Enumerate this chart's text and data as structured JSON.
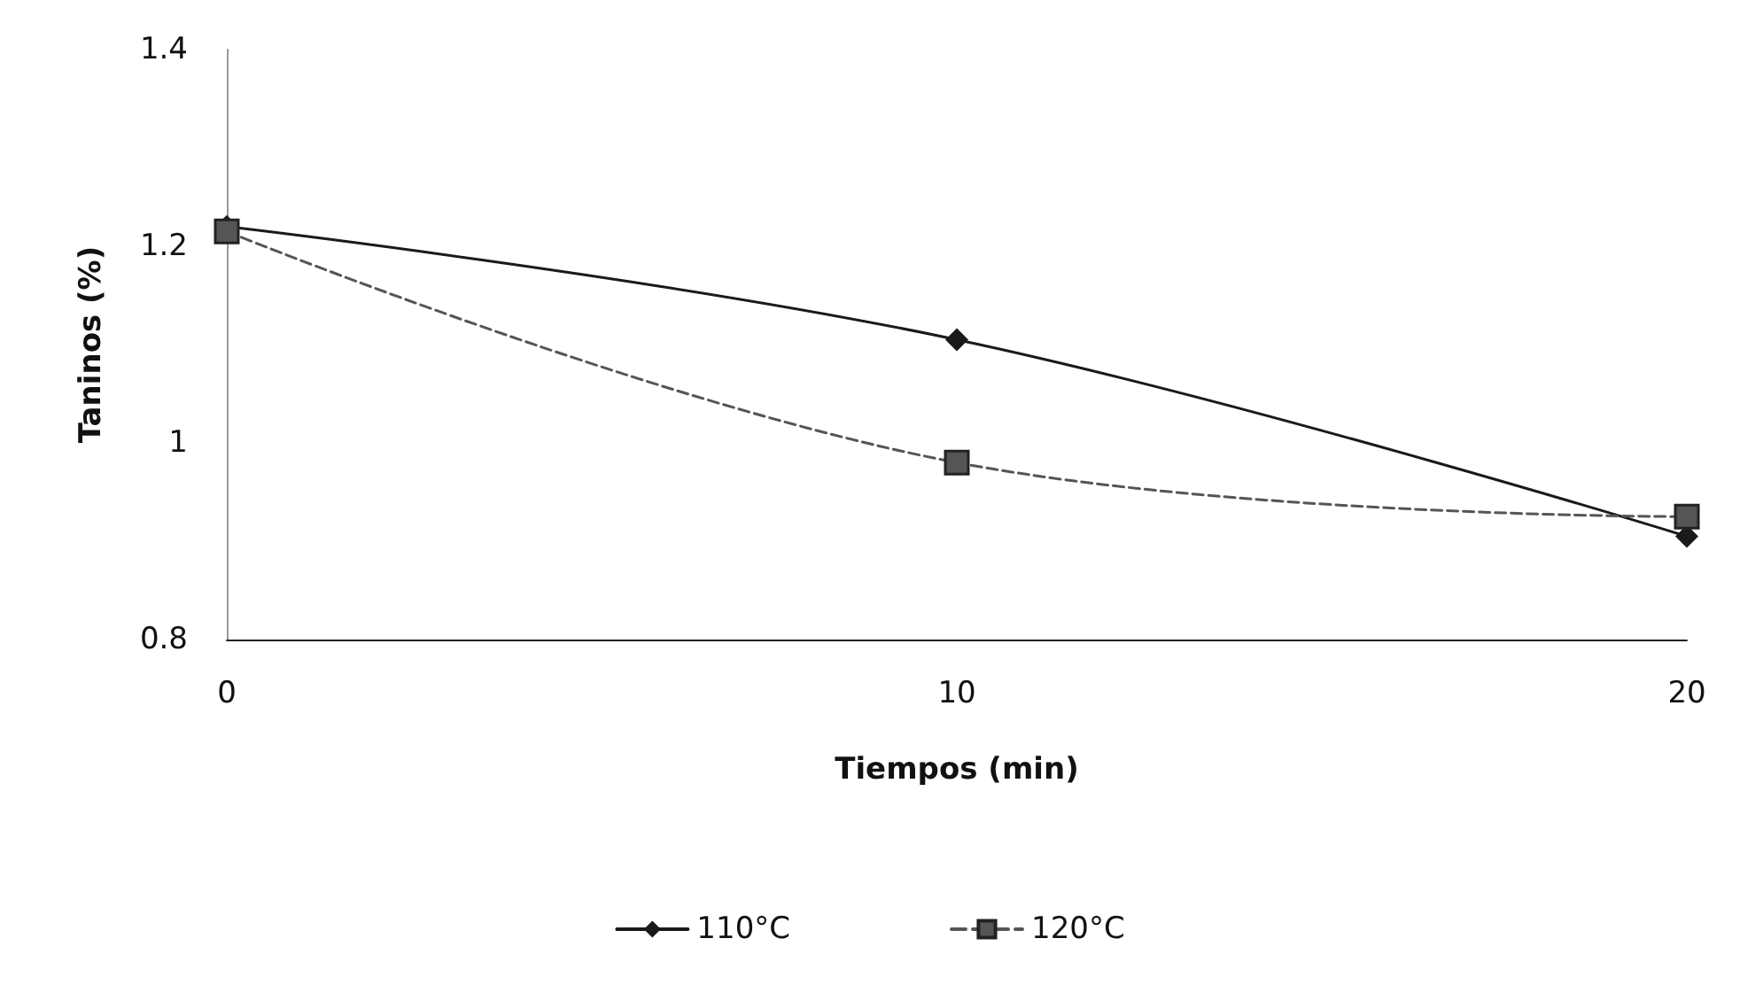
{
  "chart_data": {
    "type": "line",
    "xlabel": "Tiempos (min)",
    "ylabel": "Taninos (%)",
    "x": [
      0,
      10,
      20
    ],
    "xlim": [
      0,
      20
    ],
    "xticks": [
      0,
      10,
      20
    ],
    "ylim": [
      0.8,
      1.4
    ],
    "yticks": [
      0.8,
      1,
      1.2,
      1.4
    ],
    "series": [
      {
        "name": "110°C",
        "color": "#1a1a1a",
        "values": [
          1.22,
          1.105,
          0.905
        ],
        "marker": "diamond",
        "line_style": "solid"
      },
      {
        "name": "120°C",
        "color": "#555555",
        "values": [
          1.215,
          0.98,
          0.925
        ],
        "marker": "square",
        "line_style": "dashed"
      }
    ],
    "grid": false,
    "legend": "bottom"
  }
}
